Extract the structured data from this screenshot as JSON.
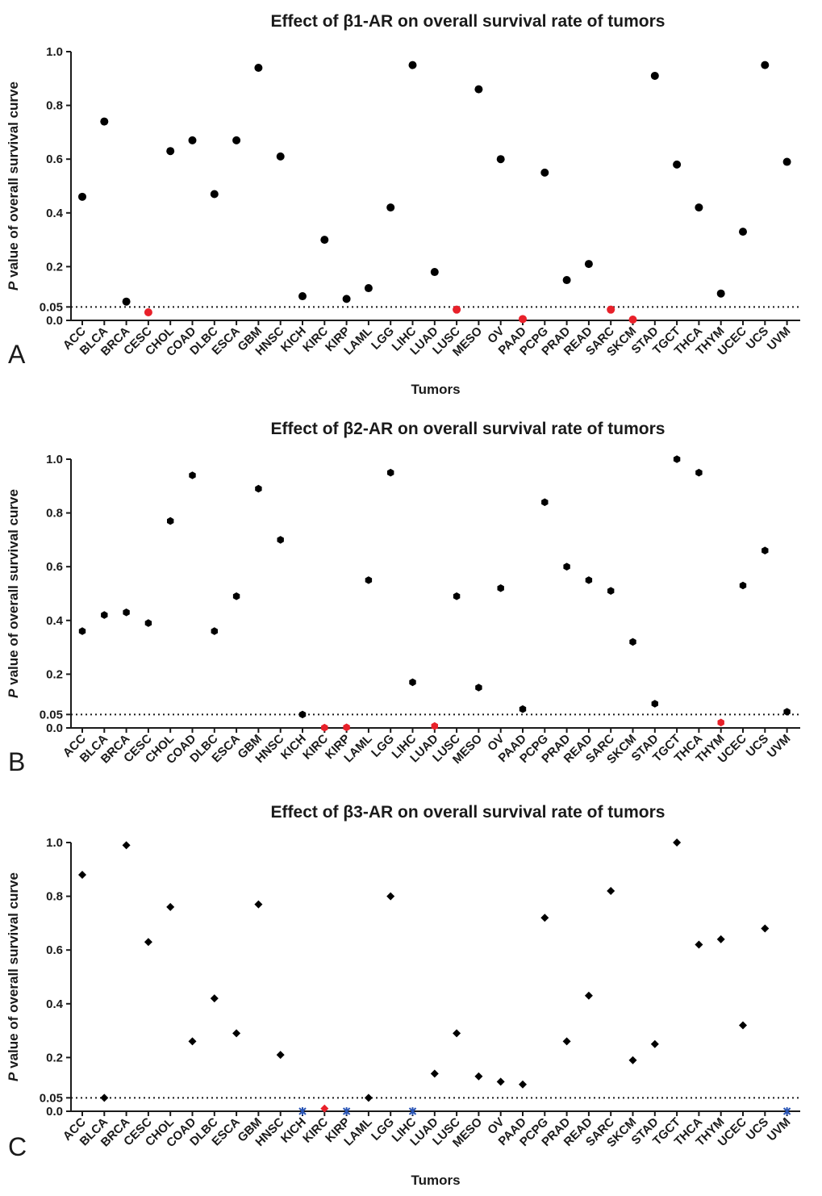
{
  "chart_data": [
    {
      "panel": "A",
      "type": "scatter",
      "title": "Effect of β1-AR on overall survival rate of tumors",
      "ylabel_italic": "P",
      "ylabel_rest": " value of overall survival curve",
      "xlabel": "Tumors",
      "ylim": [
        0,
        1.0
      ],
      "yticks": [
        "0.0",
        "0.05",
        "0.2",
        "0.4",
        "0.6",
        "0.8",
        "1.0"
      ],
      "ytick_values": [
        0,
        0.05,
        0.2,
        0.4,
        0.6,
        0.8,
        1.0
      ],
      "reference_line": 0.05,
      "marker": "circle",
      "colors": {
        "default": "#000000",
        "significant": "#e8212a"
      },
      "categories": [
        "ACC",
        "BLCA",
        "BRCA",
        "CESC",
        "CHOL",
        "COAD",
        "DLBC",
        "ESCA",
        "GBM",
        "HNSC",
        "KICH",
        "KIRC",
        "KIRP",
        "LAML",
        "LGG",
        "LIHC",
        "LUAD",
        "LUSC",
        "MESO",
        "OV",
        "PAAD",
        "PCPG",
        "PRAD",
        "READ",
        "SARC",
        "SKCM",
        "STAD",
        "TGCT",
        "THCA",
        "THYM",
        "UCEC",
        "UCS",
        "UVM"
      ],
      "values": [
        0.46,
        0.74,
        0.07,
        0.03,
        0.63,
        0.67,
        0.47,
        0.67,
        0.94,
        0.61,
        0.09,
        0.3,
        0.08,
        0.12,
        0.42,
        0.95,
        0.18,
        0.04,
        0.86,
        0.6,
        0.005,
        0.55,
        0.15,
        0.21,
        0.04,
        0.003,
        0.91,
        0.58,
        0.42,
        0.1,
        0.33,
        0.95,
        0.59
      ],
      "significant": [
        false,
        false,
        false,
        true,
        false,
        false,
        false,
        false,
        false,
        false,
        false,
        false,
        false,
        false,
        false,
        false,
        false,
        true,
        false,
        false,
        true,
        false,
        false,
        false,
        true,
        true,
        false,
        false,
        false,
        false,
        false,
        false,
        false
      ],
      "grid": false
    },
    {
      "panel": "B",
      "type": "scatter",
      "title": "Effect of β2-AR on overall survival rate of tumors",
      "ylabel_italic": "P",
      "ylabel_rest": " value of overall survival curve",
      "xlabel": "",
      "ylim": [
        0,
        1.0
      ],
      "yticks": [
        "0.0",
        "0.05",
        "0.2",
        "0.4",
        "0.6",
        "0.8",
        "1.0"
      ],
      "ytick_values": [
        0,
        0.05,
        0.2,
        0.4,
        0.6,
        0.8,
        1.0
      ],
      "reference_line": 0.05,
      "marker": "hexagon",
      "colors": {
        "default": "#000000",
        "significant": "#e8212a"
      },
      "categories": [
        "ACC",
        "BLCA",
        "BRCA",
        "CESC",
        "CHOL",
        "COAD",
        "DLBC",
        "ESCA",
        "GBM",
        "HNSC",
        "KICH",
        "KIRC",
        "KIRP",
        "LAML",
        "LGG",
        "LIHC",
        "LUAD",
        "LUSC",
        "MESO",
        "OV",
        "PAAD",
        "PCPG",
        "PRAD",
        "READ",
        "SARC",
        "SKCM",
        "STAD",
        "TGCT",
        "THCA",
        "THYM",
        "UCEC",
        "UCS",
        "UVM"
      ],
      "values": [
        0.36,
        0.42,
        0.43,
        0.39,
        0.77,
        0.94,
        0.36,
        0.49,
        0.89,
        0.7,
        0.05,
        0.001,
        0.002,
        0.55,
        0.95,
        0.17,
        0.007,
        0.49,
        0.15,
        0.52,
        0.07,
        0.84,
        0.6,
        0.55,
        0.51,
        0.32,
        0.09,
        1.0,
        0.95,
        0.02,
        0.53,
        0.66,
        0.06
      ],
      "significant": [
        false,
        false,
        false,
        false,
        false,
        false,
        false,
        false,
        false,
        false,
        false,
        true,
        true,
        false,
        false,
        false,
        true,
        false,
        false,
        false,
        false,
        false,
        false,
        false,
        false,
        false,
        false,
        false,
        false,
        true,
        false,
        false,
        false
      ],
      "grid": false
    },
    {
      "panel": "C",
      "type": "scatter",
      "title": "Effect of β3-AR on overall survival rate of tumors",
      "ylabel_italic": "P",
      "ylabel_rest": " value of overall survival curve",
      "xlabel": "Tumors",
      "ylim": [
        0,
        1.0
      ],
      "yticks": [
        "0.0",
        "0.05",
        "0.2",
        "0.4",
        "0.6",
        "0.8",
        "1.0"
      ],
      "ytick_values": [
        0,
        0.05,
        0.2,
        0.4,
        0.6,
        0.8,
        1.0
      ],
      "reference_line": 0.05,
      "marker": "diamond",
      "colors": {
        "default": "#000000",
        "significant": "#e8212a",
        "missing": "#2a55b5"
      },
      "categories": [
        "ACC",
        "BLCA",
        "BRCA",
        "CESC",
        "CHOL",
        "COAD",
        "DLBC",
        "ESCA",
        "GBM",
        "HNSC",
        "KICH",
        "KIRC",
        "KIRP",
        "LAML",
        "LGG",
        "LIHC",
        "LUAD",
        "LUSC",
        "MESO",
        "OV",
        "PAAD",
        "PCPG",
        "PRAD",
        "READ",
        "SARC",
        "SKCM",
        "STAD",
        "TGCT",
        "THCA",
        "THYM",
        "UCEC",
        "UCS",
        "UVM"
      ],
      "values": [
        0.88,
        0.05,
        0.99,
        0.63,
        0.76,
        0.26,
        0.42,
        0.29,
        0.77,
        0.21,
        0.0,
        0.01,
        0.0,
        0.05,
        0.8,
        0.0,
        0.14,
        0.29,
        0.13,
        0.11,
        0.1,
        0.72,
        0.26,
        0.43,
        0.82,
        0.19,
        0.25,
        1.0,
        0.62,
        0.64,
        0.32,
        0.68,
        0.0
      ],
      "significant": [
        false,
        false,
        false,
        false,
        false,
        false,
        false,
        false,
        false,
        false,
        false,
        true,
        false,
        false,
        false,
        false,
        false,
        false,
        false,
        false,
        false,
        false,
        false,
        false,
        false,
        false,
        false,
        false,
        false,
        false,
        false,
        false,
        false
      ],
      "not_available": [
        false,
        false,
        false,
        false,
        false,
        false,
        false,
        false,
        false,
        false,
        true,
        false,
        true,
        false,
        false,
        true,
        false,
        false,
        false,
        false,
        false,
        false,
        false,
        false,
        false,
        false,
        false,
        false,
        false,
        false,
        false,
        false,
        true
      ],
      "grid": false
    }
  ]
}
